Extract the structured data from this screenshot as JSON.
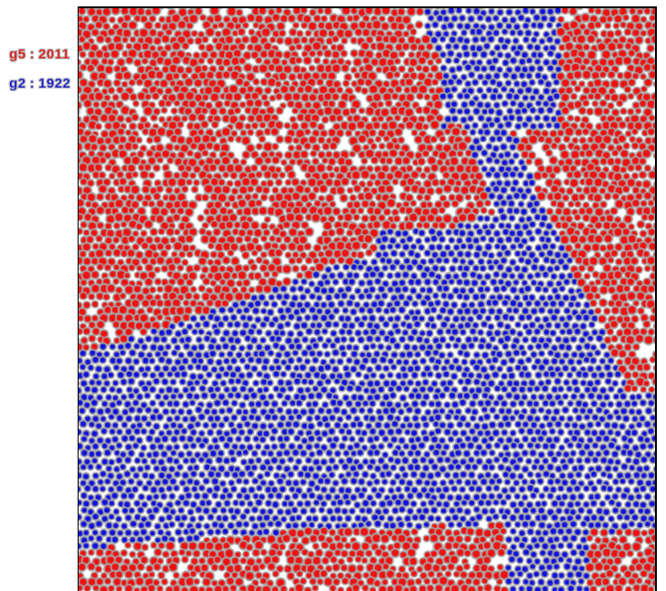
{
  "colors": {
    "group_a": "#ee1111",
    "group_b": "#1111dd",
    "particle_rim": "#a6a6a6",
    "background": "#ffffff",
    "frame": "#000000"
  },
  "legend": [
    {
      "name": "g5",
      "sep": ":",
      "count": "2011",
      "color": "#ee1111"
    },
    {
      "name": "g2",
      "sep": ":",
      "count": "1922",
      "color": "#1111dd"
    }
  ]
}
